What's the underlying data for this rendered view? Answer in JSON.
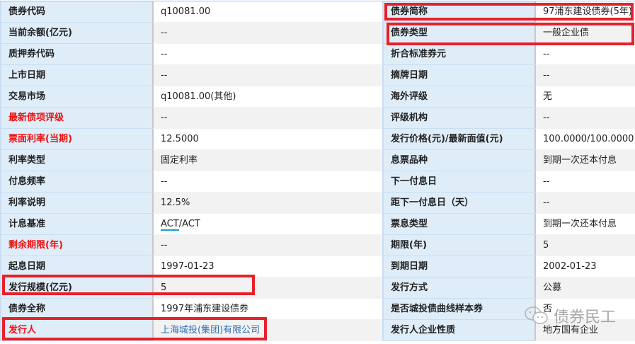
{
  "rows": [
    {
      "l_label": "债券代码",
      "l_value": "q10081.00",
      "l_red": false,
      "r_label": "债券简称",
      "r_value": "97浦东建设债券(5年)"
    },
    {
      "l_label": "当前余额(亿元)",
      "l_value": "--",
      "l_red": false,
      "r_label": "债券类型",
      "r_value": "一般企业债"
    },
    {
      "l_label": "质押券代码",
      "l_value": "--",
      "l_red": false,
      "r_label": "折合标准券元",
      "r_value": "--"
    },
    {
      "l_label": "上市日期",
      "l_value": "--",
      "l_red": false,
      "r_label": "摘牌日期",
      "r_value": "--"
    },
    {
      "l_label": "交易市场",
      "l_value": "q10081.00(其他)",
      "l_red": false,
      "r_label": "海外评级",
      "r_value": "无"
    },
    {
      "l_label": "最新债项评级",
      "l_value": "--",
      "l_red": true,
      "r_label": "评级机构",
      "r_value": "--"
    },
    {
      "l_label": "票面利率(当期)",
      "l_value": "12.5000",
      "l_red": true,
      "r_label": "发行价格(元)/最新面值(元)",
      "r_value": "100.0000/100.0000"
    },
    {
      "l_label": "利率类型",
      "l_value": "固定利率",
      "l_red": false,
      "r_label": "息票品种",
      "r_value": "到期一次还本付息"
    },
    {
      "l_label": "付息频率",
      "l_value": "--",
      "l_red": false,
      "r_label": "下一付息日",
      "r_value": "--"
    },
    {
      "l_label": "利率说明",
      "l_value": "12.5%",
      "l_red": false,
      "r_label": "距下一付息日（天）",
      "r_value": "--"
    },
    {
      "l_label": "计息基准",
      "l_value_a": "ACT",
      "l_value_b": "/ACT",
      "l_red": false,
      "r_label": "票息类型",
      "r_value": "到期一次还本付息"
    },
    {
      "l_label": "剩余期限(年)",
      "l_value": "--",
      "l_red": true,
      "r_label": "期限(年)",
      "r_value": "5"
    },
    {
      "l_label": "起息日期",
      "l_value": "1997-01-23",
      "l_red": false,
      "r_label": "到期日期",
      "r_value": "2002-01-23"
    },
    {
      "l_label": "发行规模(亿元)",
      "l_value": "5",
      "l_red": false,
      "r_label": "发行方式",
      "r_value": "公募"
    },
    {
      "l_label": "债券全称",
      "l_value": "1997年浦东建设债券",
      "l_red": false,
      "r_label": "是否城投债曲线样本券",
      "r_value": "否"
    },
    {
      "l_label": "发行人",
      "l_value": "上海城投(集团)有限公司",
      "l_red": true,
      "r_label": "发行人企业性质",
      "r_value": "地方国有企业"
    }
  ],
  "watermark": "债券民工",
  "colors": {
    "label_bg": "#dfedf9",
    "highlight": "#e8202a",
    "red_label": "#f01010",
    "link": "#2f6fb8"
  }
}
